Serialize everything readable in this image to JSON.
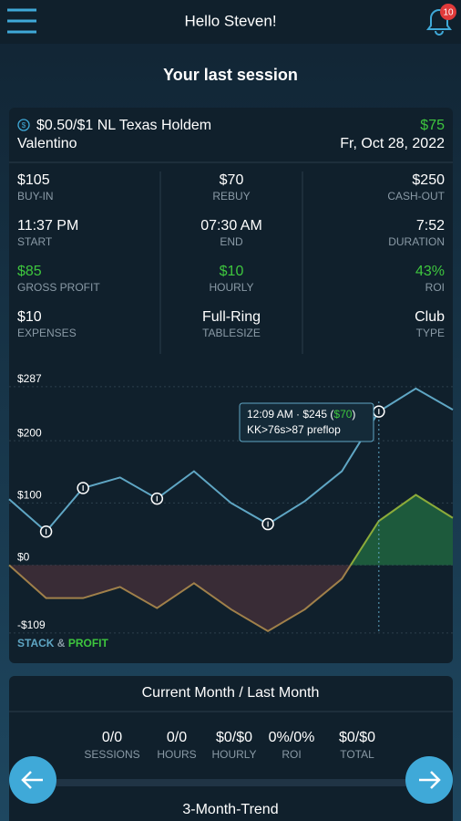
{
  "header": {
    "greeting": "Hello Steven!",
    "notifications": "10"
  },
  "section_title": "Your last session",
  "session": {
    "game": "$0.50/$1 NL Texas Holdem",
    "profit": "$75",
    "venue": "Valentino",
    "date": "Fr, Oct 28, 2022",
    "stats": [
      {
        "value": "$105",
        "label": "BUY-IN"
      },
      {
        "value": "$70",
        "label": "REBUY"
      },
      {
        "value": "$250",
        "label": "CASH-OUT"
      },
      {
        "value": "11:37 PM",
        "label": "START"
      },
      {
        "value": "07:30 AM",
        "label": "END"
      },
      {
        "value": "7:52",
        "label": "DURATION"
      },
      {
        "value": "$85",
        "label": "GROSS PROFIT",
        "color": "#3ec63e"
      },
      {
        "value": "$10",
        "label": "HOURLY",
        "color": "#3ec63e"
      },
      {
        "value": "43%",
        "label": "ROI",
        "color": "#3ec63e"
      },
      {
        "value": "$10",
        "label": "EXPENSES"
      },
      {
        "value": "Full-Ring",
        "label": "TABLESIZE"
      },
      {
        "value": "Club",
        "label": "TYPE"
      }
    ]
  },
  "chart": {
    "ylim": [
      -140,
      322
    ],
    "yticks": [
      {
        "value": 287,
        "label": "$287"
      },
      {
        "value": 200,
        "label": "$200"
      },
      {
        "value": 100,
        "label": "$100"
      },
      {
        "value": 0,
        "label": "$0"
      },
      {
        "value": -109,
        "label": "-$109"
      }
    ],
    "stack": {
      "color": "#5fa6c4",
      "values": [
        106,
        54,
        124,
        141,
        107,
        151,
        100,
        66,
        103,
        151,
        247,
        284,
        250
      ]
    },
    "profit": {
      "color": "#8cab3a",
      "values": [
        0,
        -53,
        -53,
        -35,
        -69,
        -29,
        -71,
        -106,
        -71,
        -22,
        71,
        113,
        76
      ]
    },
    "session_points": [
      1,
      2,
      4,
      7,
      10
    ],
    "tooltip": {
      "head": "12:09 AM · $245 (",
      "profit": "$70",
      "tail": ")",
      "hand": "KK>76s>87 preflop"
    },
    "legend": {
      "stack": "STACK",
      "amp": "&",
      "profit": "PROFIT"
    }
  },
  "monthly": {
    "title": "Current Month / Last Month",
    "stats": [
      {
        "value": "0/0",
        "label": "SESSIONS"
      },
      {
        "value": "0/0",
        "label": "HOURS"
      },
      {
        "value": "$0/$0",
        "label": "HOURLY"
      },
      {
        "value": "0%/0%",
        "label": "ROI"
      },
      {
        "value": "$0/$0",
        "label": "TOTAL"
      }
    ]
  },
  "trend_title": "3-Month-Trend"
}
